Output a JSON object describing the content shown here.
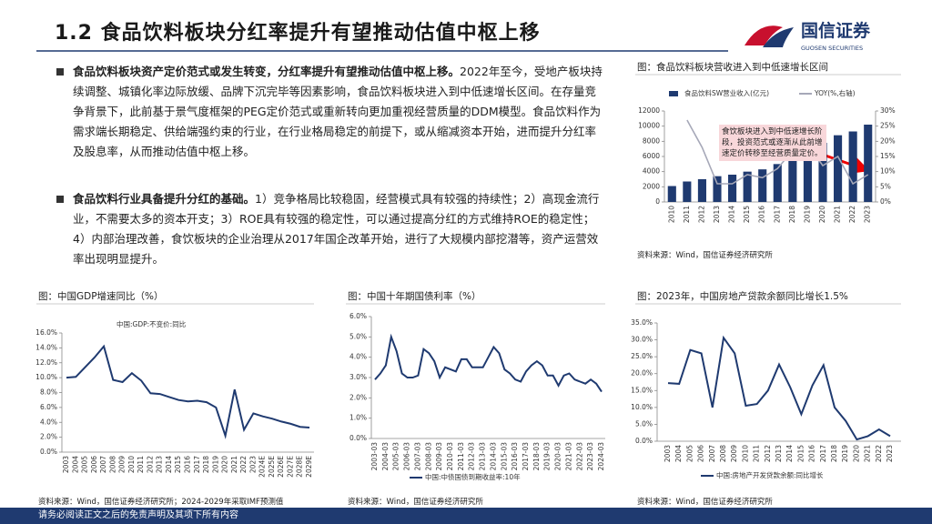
{
  "header": {
    "title": "1.2 食品饮料板块分红率提升有望推动估值中枢上移",
    "logo_text": "国信证券",
    "logo_sub": "GUOSEN SECURITIES"
  },
  "bullets": [
    {
      "bold": "食品饮料板块资产定价范式或发生转变，分红率提升有望推动估值中枢上移。",
      "text": "2022年至今，受地产板块持续调整、城镇化率边际放缓、品牌下沉完毕等因素影响，食品饮料板块进入到中低速增长区间。在存量竞争背景下，此前基于景气度框架的PEG定价范式或重新转向更加重视经营质量的DDM模型。食品饮料作为需求端长期稳定、供给端强约束的行业，在行业格局稳定的前提下，或从缩减资本开始，进而提升分红率及股息率，从而推动估值中枢上移。"
    },
    {
      "bold": "食品饮料行业具备提升分红的基础。",
      "text": "1）竞争格局比较稳固，经营模式具有较强的持续性；2）高现金流行业，不需要太多的资本开支；3）ROE具有较强的稳定性，可以通过提高分红的方式维持ROE的稳定性；4）内部治理改善，食饮板块的企业治理从2017年国企改革开始，进行了大规模内部挖潜等，资产运营效率出现明显提升。"
    }
  ],
  "chart_data": [
    {
      "type": "combo",
      "title": "图：食品饮料板块营收进入到中低速增长区间",
      "source": "资料来源：Wind，国信证券经济研究所",
      "annotation": "食饮板块进入到中低速增长阶段，投资范式或逐渐从此前增速定价转移至经营质量定价。",
      "categories": [
        "2010",
        "2011",
        "2012",
        "2013",
        "2014",
        "2015",
        "2016",
        "2017",
        "2018",
        "2019",
        "2020",
        "2021",
        "2022",
        "2023"
      ],
      "series": [
        {
          "name": "食品饮料SW营业收入(亿元)",
          "color": "#1f3a70",
          "values": [
            2100,
            2700,
            3000,
            3400,
            3600,
            4000,
            4300,
            5000,
            5900,
            7000,
            7800,
            8800,
            9300,
            10200
          ]
        },
        {
          "name": "YOY(%,右轴)",
          "color": "#a6a8b8",
          "axis": "y2",
          "values": [
            null,
            27,
            18,
            6,
            6,
            9,
            8,
            11,
            17,
            19,
            12,
            15,
            6,
            9
          ]
        }
      ],
      "ylim": [
        0,
        12000
      ],
      "yticks": [
        0,
        2000,
        4000,
        6000,
        8000,
        10000,
        12000
      ],
      "y2lim": [
        0,
        30
      ],
      "y2ticks": [
        {
          "value": 0,
          "label": "0%"
        },
        {
          "value": 5,
          "label": "5%"
        },
        {
          "value": 10,
          "label": "10%"
        },
        {
          "value": 15,
          "label": "15%"
        },
        {
          "value": 20,
          "label": "20%"
        },
        {
          "value": 25,
          "label": "25%"
        },
        {
          "value": 30,
          "label": "30%"
        }
      ],
      "grid": false
    },
    {
      "type": "line",
      "title": "图：中国GDP增速同比（%）",
      "source": "资料来源：Wind，国信证券经济研究所；2024-2029年采取IMF预测值",
      "categories": [
        "2003",
        "2004",
        "2005",
        "2006",
        "2007",
        "2008",
        "2009",
        "2010",
        "2011",
        "2012",
        "2013",
        "2014",
        "2015",
        "2016",
        "2017",
        "2018",
        "2019",
        "2020",
        "2021",
        "2022",
        "2023",
        "2024E",
        "2025E",
        "2026E",
        "2027E",
        "2028E",
        "2029E"
      ],
      "series": [
        {
          "name": "中国:GDP:不变价:同比",
          "color": "#1f3a70",
          "values": [
            10.0,
            10.1,
            11.4,
            12.7,
            14.2,
            9.7,
            9.4,
            10.6,
            9.6,
            7.9,
            7.8,
            7.4,
            7.0,
            6.8,
            6.9,
            6.7,
            6.0,
            2.2,
            8.4,
            3.0,
            5.2,
            4.8,
            4.5,
            4.1,
            3.8,
            3.4,
            3.3
          ]
        }
      ],
      "ylim": [
        0,
        16
      ],
      "yticks": [
        {
          "value": 0,
          "label": "0.0%"
        },
        {
          "value": 2,
          "label": "2.0%"
        },
        {
          "value": 4,
          "label": "4.0%"
        },
        {
          "value": 6,
          "label": "6.0%"
        },
        {
          "value": 8,
          "label": "8.0%"
        },
        {
          "value": 10,
          "label": "10.0%"
        },
        {
          "value": 12,
          "label": "12.0%"
        },
        {
          "value": 14,
          "label": "14.0%"
        },
        {
          "value": 16,
          "label": "16.0%"
        }
      ],
      "grid": false
    },
    {
      "type": "line",
      "title": "图：中国十年期国债利率（%）",
      "source": "资料来源：Wind，国信证券经济研究所",
      "categories": [
        "2003-03",
        null,
        "2004-03",
        null,
        "2005-03",
        null,
        "2006-03",
        null,
        "2007-03",
        null,
        "2008-03",
        null,
        "2009-03",
        null,
        "2010-03",
        null,
        "2011-03",
        null,
        "2012-03",
        null,
        "2013-03",
        null,
        "2014-03",
        null,
        "2015-03",
        null,
        "2016-03",
        null,
        "2017-03",
        null,
        "2018-03",
        null,
        "2019-03",
        null,
        "2020-03",
        null,
        "2021-03",
        null,
        "2022-03",
        null,
        "2023-03",
        null,
        "2024-03"
      ],
      "series": [
        {
          "name": "中国:中债国债到期收益率:10年",
          "color": "#1f3a70",
          "values": [
            2.9,
            3.2,
            3.6,
            5.0,
            4.3,
            3.2,
            3.0,
            3.0,
            3.1,
            4.4,
            4.2,
            3.8,
            3.0,
            3.5,
            3.4,
            3.3,
            3.9,
            3.9,
            3.5,
            3.5,
            3.5,
            4.0,
            4.5,
            4.2,
            3.4,
            3.2,
            2.9,
            2.8,
            3.3,
            3.6,
            3.8,
            3.6,
            3.1,
            3.1,
            2.6,
            3.1,
            3.2,
            2.9,
            2.8,
            2.7,
            2.9,
            2.7,
            2.3
          ]
        }
      ],
      "ylim": [
        0,
        6
      ],
      "yticks": [
        {
          "value": 0,
          "label": "0.0%"
        },
        {
          "value": 1,
          "label": "1.0%"
        },
        {
          "value": 2,
          "label": "2.0%"
        },
        {
          "value": 3,
          "label": "3.0%"
        },
        {
          "value": 4,
          "label": "4.0%"
        },
        {
          "value": 5,
          "label": "5.0%"
        },
        {
          "value": 6,
          "label": "6.0%"
        }
      ],
      "grid": false
    },
    {
      "type": "line",
      "title": "图：2023年，中国房地产贷款余额同比增长1.5%",
      "source": "资料来源：Wind，国信证券经济研究所",
      "categories": [
        "2003",
        "2004",
        "2005",
        "2006",
        "2007",
        "2008",
        "2009",
        "2010",
        "2011",
        "2012",
        "2013",
        "2014",
        "2015",
        "2016",
        "2017",
        "2018",
        "2019",
        "2020",
        "2021",
        "2022",
        "2023"
      ],
      "series": [
        {
          "name": "中国:房地产开发贷款余额:同比增长",
          "color": "#1f3a70",
          "values": [
            17.2,
            17.0,
            27.0,
            26.0,
            10.0,
            30.6,
            26.0,
            10.5,
            11.0,
            15.0,
            22.7,
            16.0,
            8.0,
            16.5,
            22.5,
            10.0,
            6.0,
            0.5,
            1.5,
            3.5,
            1.5
          ]
        }
      ],
      "ylim": [
        0,
        35
      ],
      "yticks": [
        {
          "value": 0,
          "label": "0.0%"
        },
        {
          "value": 5,
          "label": "5.0%"
        },
        {
          "value": 10,
          "label": "10.0%"
        },
        {
          "value": 15,
          "label": "15.0%"
        },
        {
          "value": 20,
          "label": "20.0%"
        },
        {
          "value": 25,
          "label": "25.0%"
        },
        {
          "value": 30,
          "label": "30.0%"
        },
        {
          "value": 35,
          "label": "35.0%"
        }
      ],
      "grid": false
    }
  ],
  "footer": "请务必阅读正文之后的免责声明及其项下所有内容"
}
